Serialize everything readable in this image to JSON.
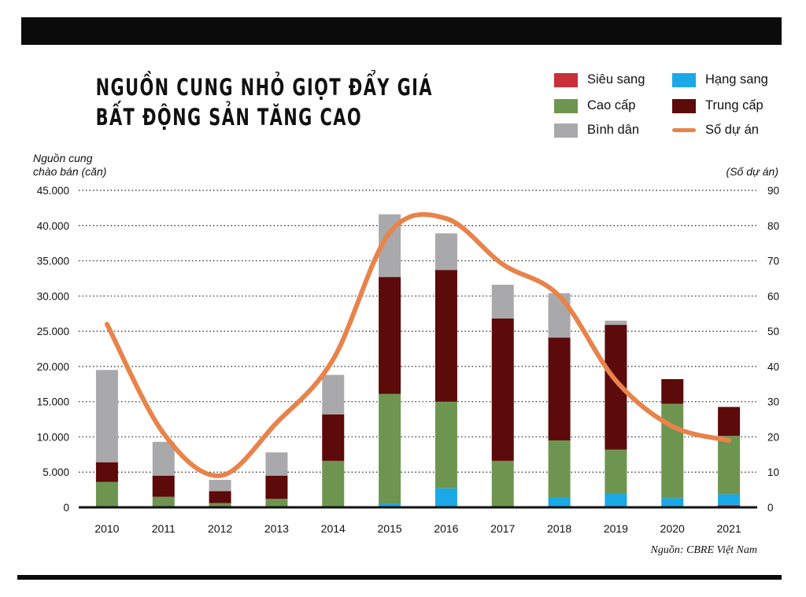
{
  "title": {
    "line1": "NGUỒN CUNG NHỎ GIỌT ĐẨY GIÁ",
    "line2": "BẤT ĐỘNG SẢN TĂNG CAO"
  },
  "source": "Nguồn: CBRE Việt Nam",
  "colors": {
    "sieu_sang": "#c8303a",
    "hang_sang": "#1aa9e6",
    "cao_cap": "#6e9550",
    "trung_cap": "#5c0a0a",
    "binh_dan": "#a9a9ab",
    "so_du_an": "#e8834a"
  },
  "chart_data": {
    "type": "bar",
    "stacked": true,
    "ylabel": "Nguồn cung chào bán (căn)",
    "ylabel_lines": [
      "Nguồn cung",
      "chào bán (căn)"
    ],
    "y2label": "(Số dự án)",
    "ylim": [
      0,
      45000
    ],
    "y2lim": [
      0,
      90
    ],
    "yticks": [
      "0",
      "5.000",
      "10.000",
      "15.000",
      "20.000",
      "25.000",
      "30.000",
      "35.000",
      "40.000",
      "45.000"
    ],
    "y2ticks": [
      "0",
      "10",
      "20",
      "30",
      "40",
      "50",
      "60",
      "70",
      "80",
      "90"
    ],
    "grid": "horizontal dotted",
    "legend_position": "top-right",
    "categories": [
      "2010",
      "2011",
      "2012",
      "2013",
      "2014",
      "2015",
      "2016",
      "2017",
      "2018",
      "2019",
      "2020",
      "2021"
    ],
    "series": [
      {
        "name": "Siêu sang",
        "key": "sieu_sang",
        "values": [
          0,
          0,
          0,
          0,
          0,
          0,
          0,
          0,
          0,
          0,
          0,
          350
        ]
      },
      {
        "name": "Hạng sang",
        "key": "hang_sang",
        "values": [
          0,
          0,
          0,
          0,
          0,
          500,
          2700,
          0,
          1400,
          1900,
          1300,
          1500
        ]
      },
      {
        "name": "Cao cấp",
        "key": "cao_cap",
        "values": [
          3600,
          1500,
          600,
          1200,
          6600,
          15600,
          12300,
          6600,
          8100,
          6300,
          13400,
          8300
        ]
      },
      {
        "name": "Trung cấp",
        "key": "trung_cap",
        "values": [
          2800,
          3000,
          1700,
          3300,
          6600,
          16600,
          18700,
          20200,
          14600,
          17700,
          3500,
          4100
        ]
      },
      {
        "name": "Bình dân",
        "key": "binh_dan",
        "values": [
          13100,
          4800,
          1600,
          3300,
          5600,
          8900,
          5200,
          4800,
          6300,
          600,
          0,
          0
        ]
      }
    ],
    "line_series": {
      "name": "Số dự án",
      "key": "so_du_an",
      "axis": "right",
      "values": [
        52,
        21,
        9,
        24,
        42,
        78,
        82,
        69,
        60,
        36,
        23,
        19
      ]
    }
  }
}
